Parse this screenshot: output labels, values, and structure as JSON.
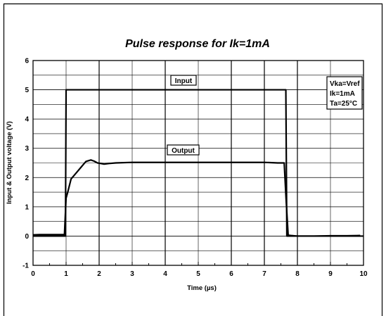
{
  "chart_data": {
    "type": "line",
    "title": "Pulse response for Ik=1mA",
    "xlabel_prefix": "Time (",
    "xlabel_unit": "µs",
    "xlabel_suffix": ")",
    "ylabel": "Input & Output voltage (V)",
    "xlim": [
      0,
      10
    ],
    "ylim": [
      -1,
      6
    ],
    "xticks": [
      "0",
      "1",
      "2",
      "3",
      "4",
      "5",
      "6",
      "7",
      "8",
      "9",
      "10"
    ],
    "yticks": [
      "-1",
      "0",
      "1",
      "2",
      "3",
      "4",
      "5",
      "6"
    ],
    "grid": true,
    "annotations": {
      "input_label": "Input",
      "output_label": "Output",
      "conditions": [
        "Vka=Vref",
        "Ik=1mA",
        "Ta=25°C"
      ]
    },
    "series": [
      {
        "name": "Input",
        "x": [
          0,
          0.98,
          1.0,
          7.65,
          7.68,
          10
        ],
        "y": [
          0,
          0,
          5.0,
          5.0,
          0,
          0
        ]
      },
      {
        "name": "Output",
        "x": [
          0,
          0.2,
          0.5,
          0.95,
          1.0,
          1.05,
          1.15,
          1.3,
          1.45,
          1.6,
          1.75,
          1.85,
          1.95,
          2.05,
          2.15,
          2.3,
          2.5,
          3.0,
          4.0,
          5.0,
          6.0,
          7.0,
          7.4,
          7.6,
          7.66,
          7.72,
          7.8,
          8.0,
          8.5,
          9.0,
          9.5,
          9.9
        ],
        "y": [
          0.04,
          0.05,
          0.05,
          0.05,
          1.3,
          1.5,
          1.95,
          2.15,
          2.35,
          2.55,
          2.6,
          2.56,
          2.5,
          2.48,
          2.46,
          2.48,
          2.5,
          2.52,
          2.52,
          2.52,
          2.52,
          2.52,
          2.5,
          2.5,
          1.2,
          0.03,
          0.02,
          0.0,
          0.0,
          0.01,
          0.01,
          0.02
        ]
      }
    ]
  }
}
